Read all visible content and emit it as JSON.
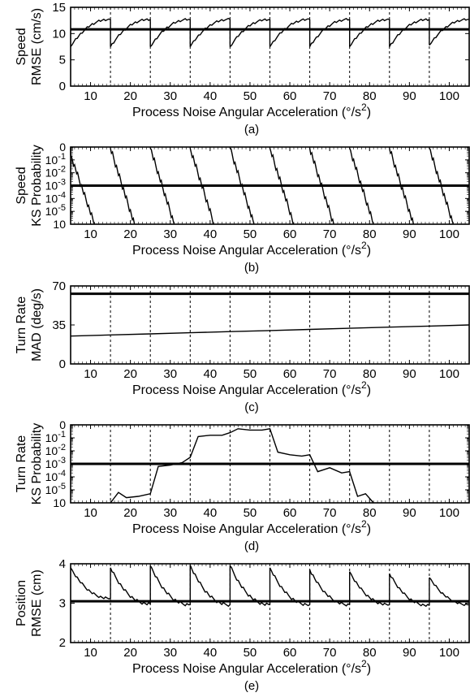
{
  "chart_data": [
    {
      "type": "line",
      "panel_label": "(a)",
      "ylabel_lines": [
        "Speed",
        "RMSE (cm/s)"
      ],
      "xlabel": "Process Noise Angular Acceleration",
      "xlabel_unit_base": "(°/s",
      "xlabel_unit_exp": "2",
      "xlabel_unit_end": ")",
      "xlim": [
        5,
        105
      ],
      "ylim": [
        0,
        15
      ],
      "x_ticks": [
        "10",
        "20",
        "30",
        "40",
        "50",
        "60",
        "70",
        "80",
        "90",
        "100"
      ],
      "y_ticks": [
        "0",
        "5",
        "10",
        "15"
      ],
      "reference_line": 10.8,
      "dashed_x": [
        15,
        25,
        35,
        45,
        55,
        65,
        75,
        85,
        95
      ],
      "segments": [
        {
          "x_start": 5,
          "x_end": 15,
          "y_start": 7.5,
          "y_end": 12.7
        },
        {
          "x_start": 15,
          "x_end": 25,
          "y_start": 7.5,
          "y_end": 12.7
        },
        {
          "x_start": 25,
          "x_end": 35,
          "y_start": 7.5,
          "y_end": 12.7
        },
        {
          "x_start": 35,
          "x_end": 45,
          "y_start": 7.5,
          "y_end": 12.7
        },
        {
          "x_start": 45,
          "x_end": 55,
          "y_start": 7.5,
          "y_end": 12.7
        },
        {
          "x_start": 55,
          "x_end": 65,
          "y_start": 7.5,
          "y_end": 12.7
        },
        {
          "x_start": 65,
          "x_end": 75,
          "y_start": 7.5,
          "y_end": 12.7
        },
        {
          "x_start": 75,
          "x_end": 85,
          "y_start": 7.5,
          "y_end": 12.7
        },
        {
          "x_start": 85,
          "x_end": 95,
          "y_start": 7.5,
          "y_end": 12.7
        },
        {
          "x_start": 95,
          "x_end": 105,
          "y_start": 7.8,
          "y_end": 12.7
        }
      ]
    },
    {
      "type": "line",
      "panel_label": "(b)",
      "ylabel_lines": [
        "Speed",
        "KS Probability"
      ],
      "xlabel": "Process Noise Angular Acceleration",
      "xlabel_unit_base": "(°/s",
      "xlabel_unit_exp": "2",
      "xlabel_unit_end": ")",
      "xlim": [
        5,
        105
      ],
      "ylim": [
        -6,
        0
      ],
      "y_scale": "log",
      "x_ticks": [
        "10",
        "20",
        "30",
        "40",
        "50",
        "60",
        "70",
        "80",
        "90",
        "100"
      ],
      "y_ticks": [
        "0",
        "10-1",
        "10-2",
        "10-3",
        "10-4",
        "10-5",
        "10"
      ],
      "reference_line": -3,
      "segments": [
        {
          "x_start": 5,
          "x_end": 11,
          "y_start": -0.6,
          "y_end": -6
        },
        {
          "x_start": 15,
          "x_end": 21,
          "y_start": -0.1,
          "y_end": -6
        },
        {
          "x_start": 25,
          "x_end": 31,
          "y_start": -0.1,
          "y_end": -6
        },
        {
          "x_start": 35,
          "x_end": 41,
          "y_start": -0.1,
          "y_end": -6
        },
        {
          "x_start": 45,
          "x_end": 51,
          "y_start": -0.1,
          "y_end": -6
        },
        {
          "x_start": 55,
          "x_end": 61,
          "y_start": -0.1,
          "y_end": -6
        },
        {
          "x_start": 65,
          "x_end": 71,
          "y_start": -0.1,
          "y_end": -6
        },
        {
          "x_start": 75,
          "x_end": 81,
          "y_start": -0.1,
          "y_end": -6
        },
        {
          "x_start": 85,
          "x_end": 91,
          "y_start": -0.1,
          "y_end": -6
        },
        {
          "x_start": 95,
          "x_end": 101,
          "y_start": -0.1,
          "y_end": -6
        }
      ]
    },
    {
      "type": "line",
      "panel_label": "(c)",
      "ylabel_lines": [
        "Turn Rate",
        "MAD (deg/s)"
      ],
      "xlabel": "Process Noise Angular Acceleration",
      "xlabel_unit_base": "(°/s",
      "xlabel_unit_exp": "2",
      "xlabel_unit_end": ")",
      "xlim": [
        5,
        105
      ],
      "ylim": [
        0,
        70
      ],
      "x_ticks": [
        "10",
        "20",
        "30",
        "40",
        "50",
        "60",
        "70",
        "80",
        "90",
        "100"
      ],
      "y_ticks": [
        "0",
        "35",
        "70"
      ],
      "reference_line": 63,
      "dashed_x": [
        15,
        25,
        35,
        45,
        55,
        65,
        75,
        85,
        95
      ],
      "series": [
        {
          "x": [
            5,
            15,
            25,
            35,
            45,
            55,
            65,
            75,
            85,
            95,
            105
          ],
          "y": [
            25,
            26,
            27,
            28,
            29,
            30,
            31,
            32,
            33,
            34,
            35
          ]
        }
      ]
    },
    {
      "type": "line",
      "panel_label": "(d)",
      "ylabel_lines": [
        "Turn Rate",
        "KS Probability"
      ],
      "xlabel": "Process Noise Angular Acceleration",
      "xlabel_unit_base": "(°/s",
      "xlabel_unit_exp": "2",
      "xlabel_unit_end": ")",
      "xlim": [
        5,
        105
      ],
      "ylim": [
        -6,
        0
      ],
      "y_scale": "log",
      "x_ticks": [
        "10",
        "20",
        "30",
        "40",
        "50",
        "60",
        "70",
        "80",
        "90",
        "100"
      ],
      "y_ticks": [
        "0",
        "10-1",
        "10-2",
        "10-3",
        "10-4",
        "10-5",
        "10"
      ],
      "reference_line": -3,
      "dashed_x": [
        15,
        25,
        35,
        45,
        55,
        65,
        75,
        85,
        95
      ],
      "series": [
        {
          "x": [
            15,
            17,
            19,
            22,
            25,
            27,
            30,
            33,
            35,
            37,
            40,
            43,
            45,
            47,
            50,
            53,
            55,
            57,
            60,
            63,
            65,
            67,
            70,
            73,
            75,
            77,
            79,
            81
          ],
          "y": [
            -6,
            -5.2,
            -5.6,
            -5.5,
            -5.3,
            -3.2,
            -3.1,
            -2.9,
            -2.5,
            -0.9,
            -0.8,
            -0.8,
            -0.6,
            -0.3,
            -0.4,
            -0.4,
            -0.3,
            -2.1,
            -2.3,
            -2.4,
            -2.3,
            -3.6,
            -3.3,
            -3.7,
            -3.6,
            -5.5,
            -5.3,
            -6
          ]
        }
      ]
    },
    {
      "type": "line",
      "panel_label": "(e)",
      "ylabel_lines": [
        "Position",
        "RMSE (cm)"
      ],
      "xlabel": "Process Noise Angular Acceleration",
      "xlabel_unit_base": "(°/s",
      "xlabel_unit_exp": "2",
      "xlabel_unit_end": ")",
      "xlim": [
        5,
        105
      ],
      "ylim": [
        2,
        4
      ],
      "x_ticks": [
        "10",
        "20",
        "30",
        "40",
        "50",
        "60",
        "70",
        "80",
        "90",
        "100"
      ],
      "y_ticks": [
        "2",
        "3",
        "4"
      ],
      "reference_line": 3.05,
      "dashed_x": [
        15,
        25,
        35,
        45,
        55,
        65,
        75,
        85,
        95
      ],
      "segments": [
        {
          "x_start": 5,
          "x_end": 15,
          "y_start": 3.9,
          "y_end": 3.12
        },
        {
          "x_start": 15,
          "x_end": 25,
          "y_start": 3.9,
          "y_end": 2.98
        },
        {
          "x_start": 25,
          "x_end": 35,
          "y_start": 3.95,
          "y_end": 2.96
        },
        {
          "x_start": 35,
          "x_end": 45,
          "y_start": 3.97,
          "y_end": 2.96
        },
        {
          "x_start": 45,
          "x_end": 55,
          "y_start": 3.95,
          "y_end": 2.96
        },
        {
          "x_start": 55,
          "x_end": 65,
          "y_start": 3.9,
          "y_end": 2.96
        },
        {
          "x_start": 65,
          "x_end": 75,
          "y_start": 3.85,
          "y_end": 2.96
        },
        {
          "x_start": 75,
          "x_end": 85,
          "y_start": 3.8,
          "y_end": 2.96
        },
        {
          "x_start": 85,
          "x_end": 95,
          "y_start": 3.75,
          "y_end": 2.94
        },
        {
          "x_start": 95,
          "x_end": 105,
          "y_start": 3.65,
          "y_end": 2.96
        }
      ]
    }
  ]
}
